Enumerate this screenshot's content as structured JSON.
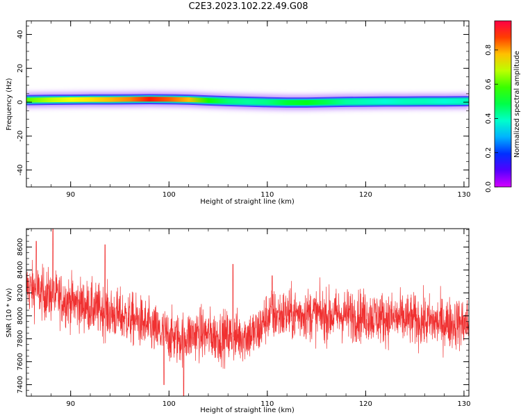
{
  "title": "C2E3.2023.102.22.49.G08",
  "chart_data": [
    {
      "type": "heatmap",
      "xlabel": "Height of straight line (km)",
      "ylabel": "Frequency (Hz)",
      "xlim": [
        85.5,
        130.5
      ],
      "ylim": [
        -50,
        48
      ],
      "xticks": [
        90,
        100,
        110,
        120,
        130
      ],
      "yticks": [
        -40,
        -20,
        0,
        20,
        40
      ],
      "colorbar": {
        "label": "Normalized spectral amplitude",
        "range": [
          0,
          0.97
        ],
        "ticks": [
          0.0,
          0.2,
          0.4,
          0.6,
          0.8
        ],
        "colormap": "gist_rainbow_r"
      },
      "ridge": {
        "x": [
          85.5,
          88,
          90,
          92,
          94,
          96,
          98,
          100,
          102,
          104,
          106,
          108,
          110,
          112,
          114,
          116,
          118,
          120,
          122,
          124,
          126,
          128,
          130.5
        ],
        "center_hz": [
          1.2,
          1.4,
          1.5,
          1.6,
          1.6,
          1.7,
          1.8,
          1.7,
          1.5,
          1.0,
          0.6,
          0.3,
          0.0,
          -0.2,
          -0.2,
          0.0,
          0.2,
          0.3,
          0.4,
          0.4,
          0.5,
          0.5,
          0.6
        ],
        "peak_amplitude": [
          0.6,
          0.68,
          0.72,
          0.75,
          0.78,
          0.82,
          0.9,
          0.85,
          0.78,
          0.55,
          0.45,
          0.42,
          0.44,
          0.5,
          0.52,
          0.48,
          0.42,
          0.4,
          0.38,
          0.4,
          0.4,
          0.38,
          0.4
        ]
      }
    },
    {
      "type": "line",
      "xlabel": "Height of straight line (km)",
      "ylabel": "SNR (10 * v/v)",
      "xlim": [
        85.5,
        130.5
      ],
      "ylim": [
        7300,
        8760
      ],
      "xticks": [
        90,
        100,
        110,
        120,
        130
      ],
      "yticks": [
        7400,
        7600,
        7800,
        8000,
        8200,
        8400,
        8600
      ],
      "color": "#f03030",
      "trend": {
        "x": [
          85.5,
          87,
          89,
          91,
          93,
          95,
          97,
          99,
          101,
          103,
          105,
          107,
          109,
          110,
          112,
          114,
          116,
          118,
          120,
          122,
          124,
          126,
          128,
          130.5
        ],
        "y": [
          8250,
          8200,
          8150,
          8100,
          8050,
          8000,
          7950,
          7850,
          7800,
          7850,
          7820,
          7820,
          7850,
          8000,
          8010,
          8020,
          8000,
          8010,
          8000,
          7980,
          7970,
          7950,
          7940,
          7930
        ]
      },
      "noise_amplitude": 150,
      "extremes": [
        [
          86.5,
          8650
        ],
        [
          88.2,
          8760
        ],
        [
          93.5,
          8620
        ],
        [
          101.5,
          7300
        ],
        [
          99.5,
          7400
        ],
        [
          110.5,
          8350
        ],
        [
          106.5,
          8450
        ]
      ]
    }
  ]
}
